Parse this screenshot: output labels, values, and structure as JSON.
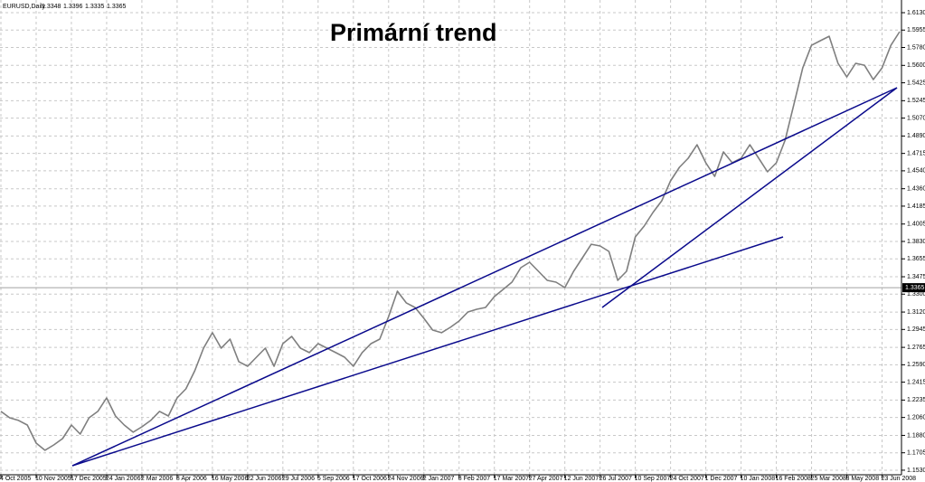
{
  "chart_data": {
    "type": "line",
    "title": "Primární trend",
    "symbol": "EURUSD,Daily",
    "ohlc": [
      1.3348,
      1.3396,
      1.3335,
      1.3365
    ],
    "categories": [
      "4 Oct 2005",
      null,
      null,
      null,
      "10 Nov 2005",
      null,
      null,
      null,
      "17 Dec 2005",
      null,
      null,
      null,
      "24 Jan 2006",
      null,
      null,
      null,
      "2 Mar 2006",
      null,
      null,
      null,
      "8 Apr 2006",
      null,
      null,
      null,
      "16 May 2006",
      null,
      null,
      null,
      "22 Jun 2006",
      null,
      null,
      null,
      "29 Jul 2006",
      null,
      null,
      null,
      "5 Sep 2006",
      null,
      null,
      null,
      "17 Oct 2006",
      null,
      null,
      null,
      "24 Nov 2006",
      null,
      null,
      null,
      "2 Jan 2007",
      null,
      null,
      null,
      "8 Feb 2007",
      null,
      null,
      null,
      "17 Mar 2007",
      null,
      null,
      null,
      "27 Apr 2007",
      null,
      null,
      null,
      "12 Jun 2007",
      null,
      null,
      null,
      "26 Jul 2007",
      null,
      null,
      null,
      "10 Sep 2007",
      null,
      null,
      null,
      "24 Oct 2007",
      null,
      null,
      null,
      "1 Dec 2007",
      null,
      null,
      null,
      "10 Jan 2008",
      null,
      null,
      null,
      "16 Feb 2008",
      null,
      null,
      null,
      "25 Mar 2008",
      null,
      null,
      null,
      "8 May 2008",
      null,
      null,
      null,
      "23 Jun 2008",
      null,
      null
    ],
    "values": [
      1.2121,
      1.2057,
      1.203,
      1.1984,
      1.1802,
      1.173,
      1.1784,
      1.1848,
      1.1984,
      1.1893,
      1.2057,
      1.2121,
      1.2257,
      1.2075,
      1.1984,
      1.1912,
      1.1966,
      1.203,
      1.2121,
      1.2075,
      1.2257,
      1.2348,
      1.253,
      1.2757,
      1.2912,
      1.2757,
      1.2848,
      1.2621,
      1.2575,
      1.2666,
      1.2757,
      1.2575,
      1.2802,
      1.2875,
      1.2757,
      1.2712,
      1.2802,
      1.2757,
      1.2712,
      1.2666,
      1.2575,
      1.2712,
      1.2802,
      1.2848,
      1.3075,
      1.333,
      1.3212,
      1.3166,
      1.3057,
      1.2939,
      1.2912,
      1.2966,
      1.303,
      1.3121,
      1.3148,
      1.3166,
      1.3275,
      1.3348,
      1.3421,
      1.3566,
      1.3621,
      1.353,
      1.3439,
      1.3421,
      1.3366,
      1.353,
      1.3666,
      1.3802,
      1.3784,
      1.373,
      1.3439,
      1.353,
      1.3875,
      1.3984,
      1.4121,
      1.4239,
      1.4439,
      1.4575,
      1.4666,
      1.4802,
      1.4621,
      1.4484,
      1.473,
      1.4621,
      1.4666,
      1.4802,
      1.4666,
      1.453,
      1.4621,
      1.4848,
      1.5212,
      1.5575,
      1.5802,
      1.5848,
      1.5893,
      1.5621,
      1.5484,
      1.5621,
      1.5602,
      1.5457,
      1.5575,
      1.5802,
      1.5939
    ],
    "color": "#7f7f7f",
    "ylim": [
      1.1484,
      1.6212
    ],
    "yticks": [
      {
        "value": 1.613,
        "label": "1.6130"
      },
      1.5955,
      {
        "value": 1.578,
        "label": "1.5780"
      },
      {
        "value": 1.56,
        "label": "1.5600"
      },
      1.5425,
      1.5245,
      {
        "value": 1.507,
        "label": "1.5070"
      },
      {
        "value": 1.489,
        "label": "1.4890"
      },
      1.4715,
      {
        "value": 1.454,
        "label": "1.4540"
      },
      {
        "value": 1.436,
        "label": "1.4360"
      },
      1.4185,
      1.4005,
      {
        "value": 1.383,
        "label": "1.3830"
      },
      1.3655,
      1.3475,
      {
        "value": 1.33,
        "label": "1.3300"
      },
      {
        "value": 1.312,
        "label": "1.3120"
      },
      1.2945,
      1.2765,
      {
        "value": 1.259,
        "label": "1.2590"
      },
      1.2415,
      1.2235,
      {
        "value": 1.206,
        "label": "1.2060"
      },
      {
        "value": 1.188,
        "label": "1.1880"
      },
      1.1705,
      {
        "value": 1.153,
        "label": "1.1530"
      }
    ],
    "grid": true
  }
}
